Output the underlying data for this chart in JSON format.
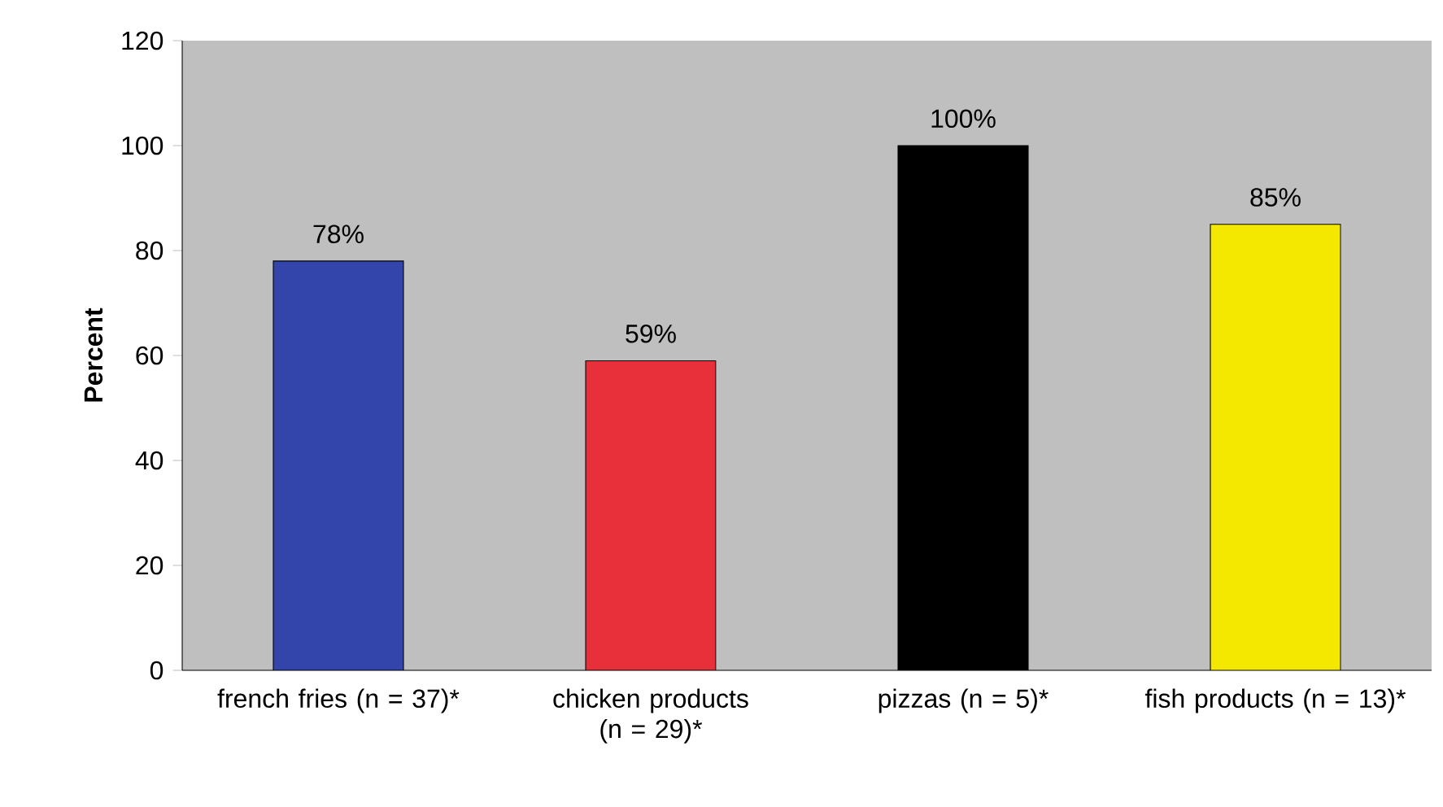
{
  "chart_data": {
    "type": "bar",
    "ylabel": "Percent",
    "categories": [
      "french fries (n = 37)*",
      "chicken products (n = 29)*",
      "pizzas (n = 5)*",
      "fish products (n = 13)*"
    ],
    "values": [
      78,
      59,
      100,
      85
    ],
    "colors": [
      "#3344aa",
      "#e8303a",
      "#000000",
      "#f5e800"
    ],
    "value_labels": [
      "78%",
      "59%",
      "100%",
      "85%"
    ],
    "ylim": [
      0,
      120
    ],
    "yticks": [
      0,
      20,
      40,
      60,
      80,
      100,
      120
    ]
  }
}
